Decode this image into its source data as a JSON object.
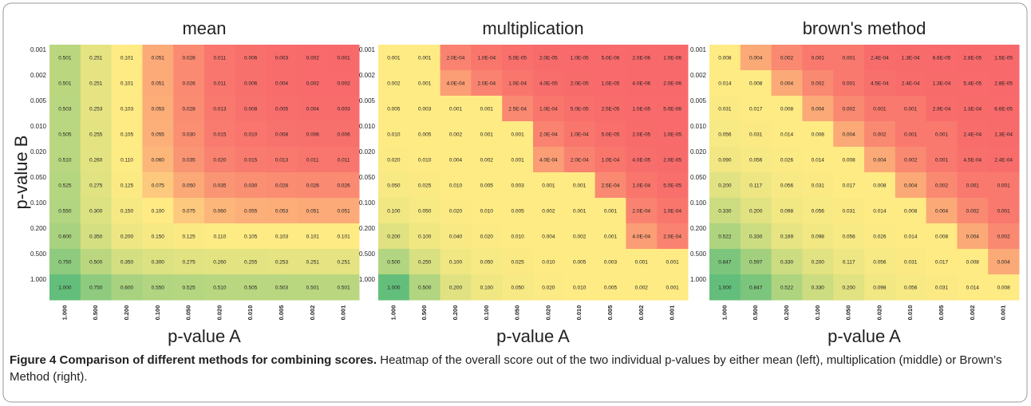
{
  "chart_data": [
    {
      "type": "heatmap",
      "title": "mean",
      "x_label": "p-value A",
      "y_label": "p-value B",
      "colors": {
        "low": "#f8696b",
        "mid": "#ffeb84",
        "high": "#63be7b"
      },
      "x": [
        "1.000",
        "0.500",
        "0.200",
        "0.100",
        "0.050",
        "0.020",
        "0.010",
        "0.005",
        "0.002",
        "0.001"
      ],
      "y": [
        "0.001",
        "0.002",
        "0.005",
        "0.010",
        "0.020",
        "0.050",
        "0.100",
        "0.200",
        "0.500",
        "1.000"
      ],
      "values": [
        [
          0.501,
          0.251,
          0.101,
          0.051,
          0.026,
          0.011,
          0.006,
          0.003,
          0.002,
          0.001
        ],
        [
          0.501,
          0.251,
          0.101,
          0.051,
          0.026,
          0.011,
          0.006,
          0.004,
          0.002,
          0.002
        ],
        [
          0.503,
          0.253,
          0.103,
          0.053,
          0.028,
          0.013,
          0.008,
          0.005,
          0.004,
          0.003
        ],
        [
          0.505,
          0.255,
          0.105,
          0.055,
          0.03,
          0.015,
          0.01,
          0.008,
          0.006,
          0.006
        ],
        [
          0.51,
          0.26,
          0.11,
          0.06,
          0.035,
          0.02,
          0.015,
          0.013,
          0.011,
          0.011
        ],
        [
          0.525,
          0.275,
          0.125,
          0.075,
          0.05,
          0.035,
          0.03,
          0.028,
          0.026,
          0.026
        ],
        [
          0.55,
          0.3,
          0.15,
          0.1,
          0.075,
          0.06,
          0.055,
          0.053,
          0.051,
          0.051
        ],
        [
          0.6,
          0.35,
          0.2,
          0.15,
          0.125,
          0.11,
          0.105,
          0.103,
          0.101,
          0.101
        ],
        [
          0.75,
          0.5,
          0.35,
          0.3,
          0.275,
          0.26,
          0.255,
          0.253,
          0.251,
          0.251
        ],
        [
          1,
          0.75,
          0.6,
          0.55,
          0.525,
          0.51,
          0.505,
          0.503,
          0.501,
          0.501
        ]
      ],
      "value_labels": [
        [
          "0.501",
          "0.251",
          "0.101",
          "0.051",
          "0.026",
          "0.011",
          "0.006",
          "0.003",
          "0.002",
          "0.001"
        ],
        [
          "0.501",
          "0.251",
          "0.101",
          "0.051",
          "0.026",
          "0.011",
          "0.006",
          "0.004",
          "0.002",
          "0.002"
        ],
        [
          "0.503",
          "0.253",
          "0.103",
          "0.053",
          "0.028",
          "0.013",
          "0.008",
          "0.005",
          "0.004",
          "0.003"
        ],
        [
          "0.505",
          "0.255",
          "0.105",
          "0.055",
          "0.030",
          "0.015",
          "0.010",
          "0.008",
          "0.006",
          "0.006"
        ],
        [
          "0.510",
          "0.260",
          "0.110",
          "0.060",
          "0.035",
          "0.020",
          "0.015",
          "0.013",
          "0.011",
          "0.011"
        ],
        [
          "0.525",
          "0.275",
          "0.125",
          "0.075",
          "0.050",
          "0.035",
          "0.030",
          "0.028",
          "0.026",
          "0.026"
        ],
        [
          "0.550",
          "0.300",
          "0.150",
          "0.100",
          "0.075",
          "0.060",
          "0.055",
          "0.053",
          "0.051",
          "0.051"
        ],
        [
          "0.600",
          "0.350",
          "0.200",
          "0.150",
          "0.125",
          "0.110",
          "0.105",
          "0.103",
          "0.101",
          "0.101"
        ],
        [
          "0.750",
          "0.500",
          "0.350",
          "0.300",
          "0.275",
          "0.260",
          "0.255",
          "0.253",
          "0.251",
          "0.251"
        ],
        [
          "1.000",
          "0.750",
          "0.600",
          "0.550",
          "0.525",
          "0.510",
          "0.505",
          "0.503",
          "0.501",
          "0.501"
        ]
      ]
    },
    {
      "type": "heatmap",
      "title": "multiplication",
      "x_label": "p-value A",
      "colors": {
        "low": "#f8696b",
        "mid": "#ffeb84",
        "high": "#63be7b"
      },
      "x": [
        "1.000",
        "0.500",
        "0.200",
        "0.100",
        "0.050",
        "0.020",
        "0.010",
        "0.005",
        "0.002",
        "0.001"
      ],
      "y": [
        "0.001",
        "0.002",
        "0.005",
        "0.010",
        "0.020",
        "0.050",
        "0.100",
        "0.200",
        "0.500",
        "1.000"
      ],
      "values": [
        [
          0.001,
          0.001,
          0.0002,
          0.0001,
          5e-05,
          2e-05,
          1e-05,
          5e-06,
          2e-06,
          1e-06
        ],
        [
          0.002,
          0.001,
          0.0004,
          0.0002,
          0.0001,
          4e-05,
          2e-05,
          1e-05,
          4e-06,
          2e-06
        ],
        [
          0.005,
          0.003,
          0.001,
          0.001,
          0.00025,
          0.0001,
          5e-05,
          2.5e-05,
          1e-05,
          5e-06
        ],
        [
          0.01,
          0.005,
          0.002,
          0.001,
          0.001,
          0.0002,
          0.0001,
          5e-05,
          2e-05,
          1e-05
        ],
        [
          0.02,
          0.01,
          0.004,
          0.002,
          0.001,
          0.0004,
          0.0002,
          0.0001,
          4e-05,
          2e-05
        ],
        [
          0.05,
          0.025,
          0.01,
          0.005,
          0.003,
          0.001,
          0.001,
          0.00025,
          0.0001,
          5e-05
        ],
        [
          0.1,
          0.05,
          0.02,
          0.01,
          0.005,
          0.002,
          0.001,
          0.001,
          0.0002,
          0.0001
        ],
        [
          0.2,
          0.1,
          0.04,
          0.02,
          0.01,
          0.004,
          0.002,
          0.001,
          0.0004,
          0.0002
        ],
        [
          0.5,
          0.25,
          0.1,
          0.05,
          0.025,
          0.01,
          0.005,
          0.003,
          0.001,
          0.001
        ],
        [
          1,
          0.5,
          0.2,
          0.1,
          0.05,
          0.02,
          0.01,
          0.005,
          0.002,
          0.001
        ]
      ],
      "value_labels": [
        [
          "0.001",
          "0.001",
          "2.0E-04",
          "1.0E-04",
          "5.0E-05",
          "2.0E-05",
          "1.0E-05",
          "5.0E-06",
          "2.0E-06",
          "1.0E-06"
        ],
        [
          "0.002",
          "0.001",
          "4.0E-04",
          "2.0E-04",
          "1.0E-04",
          "4.0E-05",
          "2.0E-05",
          "1.0E-05",
          "4.0E-06",
          "2.0E-06"
        ],
        [
          "0.005",
          "0.003",
          "0.001",
          "0.001",
          "2.5E-04",
          "1.0E-04",
          "5.0E-05",
          "2.5E-05",
          "1.0E-05",
          "5.0E-06"
        ],
        [
          "0.010",
          "0.005",
          "0.002",
          "0.001",
          "0.001",
          "2.0E-04",
          "1.0E-04",
          "5.0E-05",
          "2.0E-05",
          "1.0E-05"
        ],
        [
          "0.020",
          "0.010",
          "0.004",
          "0.002",
          "0.001",
          "4.0E-04",
          "2.0E-04",
          "1.0E-04",
          "4.0E-05",
          "2.0E-05"
        ],
        [
          "0.050",
          "0.025",
          "0.010",
          "0.005",
          "0.003",
          "0.001",
          "0.001",
          "2.5E-04",
          "1.0E-04",
          "5.0E-05"
        ],
        [
          "0.100",
          "0.050",
          "0.020",
          "0.010",
          "0.005",
          "0.002",
          "0.001",
          "0.001",
          "2.0E-04",
          "1.0E-04"
        ],
        [
          "0.200",
          "0.100",
          "0.040",
          "0.020",
          "0.010",
          "0.004",
          "0.002",
          "0.001",
          "4.0E-04",
          "2.0E-04"
        ],
        [
          "0.500",
          "0.250",
          "0.100",
          "0.050",
          "0.025",
          "0.010",
          "0.005",
          "0.003",
          "0.001",
          "0.001"
        ],
        [
          "1.000",
          "0.500",
          "0.200",
          "0.100",
          "0.050",
          "0.020",
          "0.010",
          "0.005",
          "0.002",
          "0.001"
        ]
      ]
    },
    {
      "type": "heatmap",
      "title": "brown's method",
      "x_label": "p-value A",
      "colors": {
        "low": "#f8696b",
        "mid": "#ffeb84",
        "high": "#63be7b"
      },
      "x": [
        "1.000",
        "0.500",
        "0.200",
        "0.100",
        "0.050",
        "0.020",
        "0.010",
        "0.005",
        "0.002",
        "0.001"
      ],
      "y": [
        "0.001",
        "0.002",
        "0.005",
        "0.010",
        "0.020",
        "0.050",
        "0.100",
        "0.200",
        "0.500",
        "1.000"
      ],
      "values": [
        [
          0.008,
          0.004,
          0.002,
          0.001,
          0.001,
          0.00024,
          0.00013,
          6.6e-05,
          2.8e-05,
          1.5e-05
        ],
        [
          0.014,
          0.008,
          0.004,
          0.002,
          0.001,
          0.00045,
          0.00024,
          0.00013,
          5.4e-05,
          2.8e-05
        ],
        [
          0.031,
          0.017,
          0.008,
          0.004,
          0.002,
          0.001,
          0.001,
          0.00029,
          0.00013,
          6.6e-05
        ],
        [
          0.056,
          0.031,
          0.014,
          0.008,
          0.004,
          0.002,
          0.001,
          0.001,
          0.00024,
          0.00013
        ],
        [
          0.09,
          0.056,
          0.026,
          0.014,
          0.008,
          0.004,
          0.002,
          0.001,
          0.00045,
          0.00024
        ],
        [
          0.2,
          0.117,
          0.056,
          0.031,
          0.017,
          0.008,
          0.004,
          0.002,
          0.001,
          0.001
        ],
        [
          0.33,
          0.2,
          0.098,
          0.056,
          0.031,
          0.014,
          0.008,
          0.004,
          0.002,
          0.001
        ],
        [
          0.522,
          0.33,
          0.169,
          0.098,
          0.056,
          0.026,
          0.014,
          0.008,
          0.004,
          0.002
        ],
        [
          0.847,
          0.597,
          0.33,
          0.2,
          0.117,
          0.056,
          0.031,
          0.017,
          0.008,
          0.004
        ],
        [
          1,
          0.847,
          0.522,
          0.33,
          0.2,
          0.098,
          0.056,
          0.031,
          0.014,
          0.008
        ]
      ],
      "value_labels": [
        [
          "0.008",
          "0.004",
          "0.002",
          "0.001",
          "0.001",
          "2.4E-04",
          "1.3E-04",
          "6.6E-05",
          "2.8E-05",
          "1.5E-05"
        ],
        [
          "0.014",
          "0.008",
          "0.004",
          "0.002",
          "0.001",
          "4.5E-04",
          "2.4E-04",
          "1.3E-04",
          "5.4E-05",
          "2.8E-05"
        ],
        [
          "0.031",
          "0.017",
          "0.008",
          "0.004",
          "0.002",
          "0.001",
          "0.001",
          "2.9E-04",
          "1.3E-04",
          "6.6E-05"
        ],
        [
          "0.056",
          "0.031",
          "0.014",
          "0.008",
          "0.004",
          "0.002",
          "0.001",
          "0.001",
          "2.4E-04",
          "1.3E-04"
        ],
        [
          "0.090",
          "0.056",
          "0.026",
          "0.014",
          "0.008",
          "0.004",
          "0.002",
          "0.001",
          "4.5E-04",
          "2.4E-04"
        ],
        [
          "0.200",
          "0.117",
          "0.056",
          "0.031",
          "0.017",
          "0.008",
          "0.004",
          "0.002",
          "0.001",
          "0.001"
        ],
        [
          "0.330",
          "0.200",
          "0.098",
          "0.056",
          "0.031",
          "0.014",
          "0.008",
          "0.004",
          "0.002",
          "0.001"
        ],
        [
          "0.522",
          "0.330",
          "0.169",
          "0.098",
          "0.056",
          "0.026",
          "0.014",
          "0.008",
          "0.004",
          "0.002"
        ],
        [
          "0.847",
          "0.597",
          "0.330",
          "0.200",
          "0.117",
          "0.056",
          "0.031",
          "0.017",
          "0.008",
          "0.004"
        ],
        [
          "1.000",
          "0.847",
          "0.522",
          "0.330",
          "0.200",
          "0.098",
          "0.056",
          "0.031",
          "0.014",
          "0.008"
        ]
      ]
    }
  ],
  "caption": {
    "label": "Figure 4 Comparison of different methods for combining scores.",
    "text": "Heatmap of the overall score out of the two individual p-values by either mean (left), multiplication (middle) or Brown’s Method (right)."
  }
}
